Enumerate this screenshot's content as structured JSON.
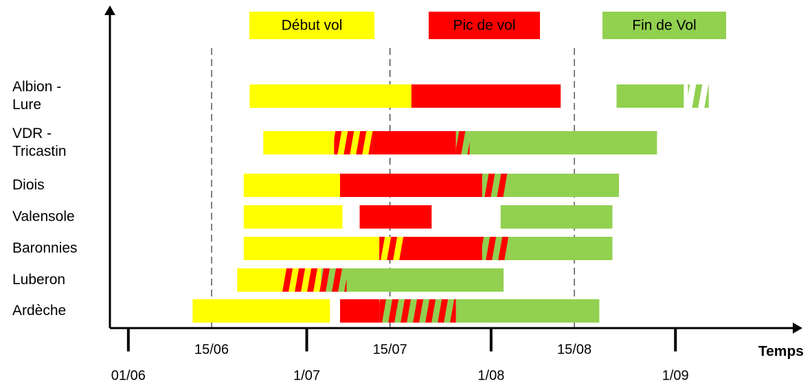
{
  "chart_data": {
    "type": "gantt",
    "x_label": "Temps",
    "xlim": [
      -3.1,
      113
    ],
    "xticks": [
      {
        "value": 0,
        "label": "01/06"
      },
      {
        "value": 30,
        "label": "1/07"
      },
      {
        "value": 61,
        "label": "1/08"
      },
      {
        "value": 92,
        "label": "1/09"
      }
    ],
    "minor_xticks": [
      {
        "value": 14,
        "label": "15/06"
      },
      {
        "value": 44,
        "label": "15/07"
      },
      {
        "value": 75,
        "label": "15/08"
      }
    ],
    "legend": [
      {
        "name": "Début vol",
        "color": "#ffff00"
      },
      {
        "name": "Pic de vol",
        "color": "#ff0000"
      },
      {
        "name": "Fin de Vol",
        "color": "#92d050"
      }
    ],
    "rows": [
      {
        "label": [
          "Albion -",
          "Lure"
        ],
        "segments": [
          {
            "start": 20.4,
            "end": 47.6,
            "color": "#ffff00"
          },
          {
            "start": 47.6,
            "end": 72.7,
            "color": "#ff0000"
          },
          {
            "start": 82.1,
            "end": 93.4,
            "color": "#92d050"
          },
          {
            "start": 94.1,
            "end": 97.6,
            "color": "#92d050",
            "stripe": "#ffffff"
          }
        ]
      },
      {
        "label": [
          "VDR -",
          "Tricastin"
        ],
        "segments": [
          {
            "start": 22.7,
            "end": 34.6,
            "color": "#ffff00"
          },
          {
            "start": 34.6,
            "end": 41.1,
            "color": "#ffff00",
            "stripe": "#ff0000"
          },
          {
            "start": 41.1,
            "end": 55.1,
            "color": "#ff0000"
          },
          {
            "start": 55.1,
            "end": 57.4,
            "color": "#92d050",
            "stripe": "#ff0000"
          },
          {
            "start": 57.4,
            "end": 88.9,
            "color": "#92d050"
          }
        ]
      },
      {
        "label": [
          "Diois"
        ],
        "segments": [
          {
            "start": 19.4,
            "end": 35.6,
            "color": "#ffff00"
          },
          {
            "start": 35.6,
            "end": 59.5,
            "color": "#ff0000"
          },
          {
            "start": 59.5,
            "end": 63.8,
            "color": "#92d050",
            "stripe": "#ff0000"
          },
          {
            "start": 63.8,
            "end": 82.5,
            "color": "#92d050"
          }
        ]
      },
      {
        "label": [
          "Valensole"
        ],
        "segments": [
          {
            "start": 19.4,
            "end": 36.0,
            "color": "#ffff00"
          },
          {
            "start": 38.9,
            "end": 51.0,
            "color": "#ff0000"
          },
          {
            "start": 62.6,
            "end": 81.4,
            "color": "#92d050"
          }
        ]
      },
      {
        "label": [
          "Baronnies"
        ],
        "segments": [
          {
            "start": 19.4,
            "end": 42.2,
            "color": "#ffff00"
          },
          {
            "start": 42.2,
            "end": 46.4,
            "color": "#ffff00",
            "stripe": "#ff0000"
          },
          {
            "start": 46.4,
            "end": 59.5,
            "color": "#ff0000"
          },
          {
            "start": 59.5,
            "end": 64.0,
            "color": "#92d050",
            "stripe": "#ff0000"
          },
          {
            "start": 64.0,
            "end": 81.4,
            "color": "#92d050"
          }
        ]
      },
      {
        "label": [
          "Luberon"
        ],
        "segments": [
          {
            "start": 18.3,
            "end": 25.9,
            "color": "#ffff00"
          },
          {
            "start": 25.9,
            "end": 32.4,
            "color": "#ffff00",
            "stripe": "#ff0000"
          },
          {
            "start": 32.4,
            "end": 36.7,
            "color": "#92d050",
            "stripe": "#ff0000"
          },
          {
            "start": 36.7,
            "end": 63.1,
            "color": "#92d050"
          }
        ]
      },
      {
        "label": [
          "Ardèche"
        ],
        "segments": [
          {
            "start": 10.8,
            "end": 33.9,
            "color": "#ffff00"
          },
          {
            "start": 35.6,
            "end": 42.2,
            "color": "#ff0000"
          },
          {
            "start": 42.2,
            "end": 55.1,
            "color": "#92d050",
            "stripe": "#ff0000"
          },
          {
            "start": 55.1,
            "end": 79.2,
            "color": "#92d050"
          }
        ]
      }
    ]
  }
}
